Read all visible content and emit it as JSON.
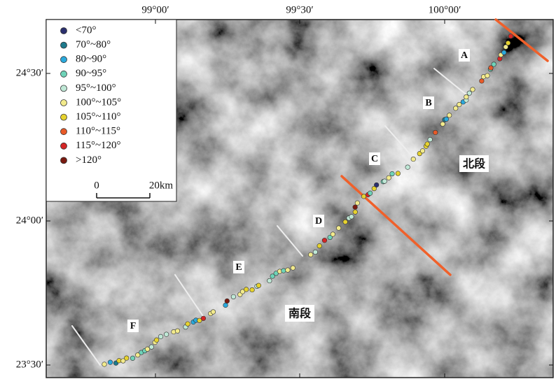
{
  "axes": {
    "longitude": [
      "99°00′",
      "99°30′",
      "100°00′"
    ],
    "latitude": [
      "24°30′",
      "24°00′",
      "23°30′"
    ]
  },
  "legend": [
    {
      "label": "<70°",
      "color": "#2b2f6e"
    },
    {
      "label": "70°~80°",
      "color": "#1e7a8c"
    },
    {
      "label": "80~90°",
      "color": "#2aa9dc"
    },
    {
      "label": "90~95°",
      "color": "#6fd3b8"
    },
    {
      "label": "95°~100°",
      "color": "#bfe8d6"
    },
    {
      "label": "100°~105°",
      "color": "#f2ea8c"
    },
    {
      "label": "105°~110°",
      "color": "#e6d22e"
    },
    {
      "label": "110°~115°",
      "color": "#e85a28"
    },
    {
      "label": "115°~120°",
      "color": "#d42626"
    },
    {
      "label": ">120°",
      "color": "#7a1a10"
    }
  ],
  "scale_bar": {
    "start": "0",
    "end": "20km"
  },
  "segments": [
    "A",
    "B",
    "C",
    "D",
    "E",
    "F"
  ],
  "regions": [
    "北段",
    "南段"
  ]
}
